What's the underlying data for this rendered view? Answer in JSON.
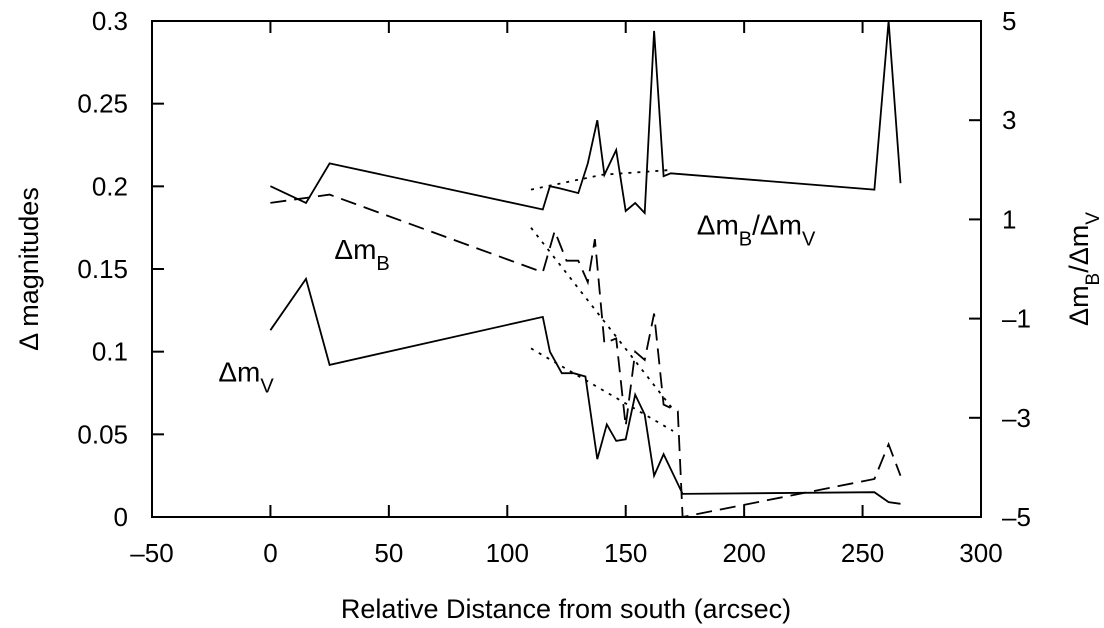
{
  "chart_data": {
    "type": "line",
    "xlabel": "Relative Distance from south (arcsec)",
    "ylabel": "Δ magnitudes",
    "y2label_parts": [
      "Δm",
      "B",
      "/Δm",
      "V"
    ],
    "xlim": [
      -50,
      300
    ],
    "ylim": [
      0,
      0.3
    ],
    "y2lim": [
      -5,
      5
    ],
    "x_ticks": [
      -50,
      0,
      50,
      100,
      150,
      200,
      250,
      300
    ],
    "x_tick_labels": [
      "–50",
      "0",
      "50",
      "100",
      "150",
      "200",
      "250",
      "300"
    ],
    "y_ticks": [
      0,
      0.05,
      0.1,
      0.15,
      0.2,
      0.25,
      0.3
    ],
    "y_tick_labels": [
      "0",
      "0.05",
      "0.1",
      "0.15",
      "0.2",
      "0.25",
      "0.3"
    ],
    "y2_ticks": [
      -5,
      -3,
      -1,
      1,
      3,
      5
    ],
    "y2_tick_labels": [
      "–5",
      "–3",
      "–1",
      "1",
      "3",
      "5"
    ],
    "grid": false,
    "annotations": [
      {
        "id": "annot-delta-mv",
        "parts": [
          "Δm",
          "V"
        ],
        "x": -22,
        "y": 0.082
      },
      {
        "id": "annot-delta-mb",
        "parts": [
          "Δm",
          "B"
        ],
        "x": 27,
        "y": 0.156
      },
      {
        "id": "annot-ratio",
        "parts": [
          "Δm",
          "B",
          "/Δm",
          "V"
        ],
        "x": 180,
        "y": 0.171
      }
    ],
    "series": [
      {
        "id": "ratio-solid",
        "style": "solid",
        "axis": "right",
        "x": [
          0,
          15,
          25,
          115,
          118,
          122,
          130,
          134,
          138,
          141,
          146,
          150,
          154,
          158,
          162,
          166,
          169,
          255,
          261,
          266
        ],
        "y": [
          1.67,
          1.33,
          2.13,
          1.2,
          1.67,
          1.63,
          1.53,
          2.13,
          3.0,
          1.9,
          2.4,
          1.17,
          1.33,
          1.13,
          4.8,
          1.87,
          1.93,
          1.6,
          5.0,
          1.73
        ]
      },
      {
        "id": "ratio-dotted",
        "style": "dotted",
        "axis": "right",
        "x": [
          110,
          140,
          170
        ],
        "y": [
          1.6,
          1.9,
          2.0
        ]
      },
      {
        "id": "delta-mb",
        "style": "dashed",
        "axis": "left",
        "x": [
          0,
          25,
          115,
          120,
          125,
          130,
          134,
          137,
          141,
          146,
          150,
          154,
          158,
          162,
          166,
          172,
          174,
          255,
          261,
          266
        ],
        "y": [
          0.19,
          0.195,
          0.148,
          0.173,
          0.155,
          0.155,
          0.142,
          0.168,
          0.105,
          0.108,
          0.055,
          0.1,
          0.095,
          0.123,
          0.068,
          0.064,
          0.0,
          0.023,
          0.044,
          0.025
        ]
      },
      {
        "id": "delta-mb-dotted",
        "style": "dotted",
        "axis": "left",
        "x": [
          110,
          170
        ],
        "y": [
          0.175,
          0.065
        ]
      },
      {
        "id": "delta-mv",
        "style": "solid",
        "axis": "left",
        "x": [
          0,
          15,
          25,
          115,
          118,
          123,
          128,
          133,
          138,
          142,
          146,
          150,
          154,
          158,
          162,
          166,
          170,
          174,
          255,
          261,
          266
        ],
        "y": [
          0.113,
          0.144,
          0.092,
          0.121,
          0.1,
          0.087,
          0.087,
          0.085,
          0.035,
          0.056,
          0.046,
          0.047,
          0.074,
          0.062,
          0.025,
          0.038,
          0.026,
          0.014,
          0.015,
          0.009,
          0.008
        ]
      },
      {
        "id": "delta-mv-dotted",
        "style": "dotted",
        "axis": "left",
        "x": [
          110,
          170
        ],
        "y": [
          0.102,
          0.052
        ]
      }
    ]
  }
}
